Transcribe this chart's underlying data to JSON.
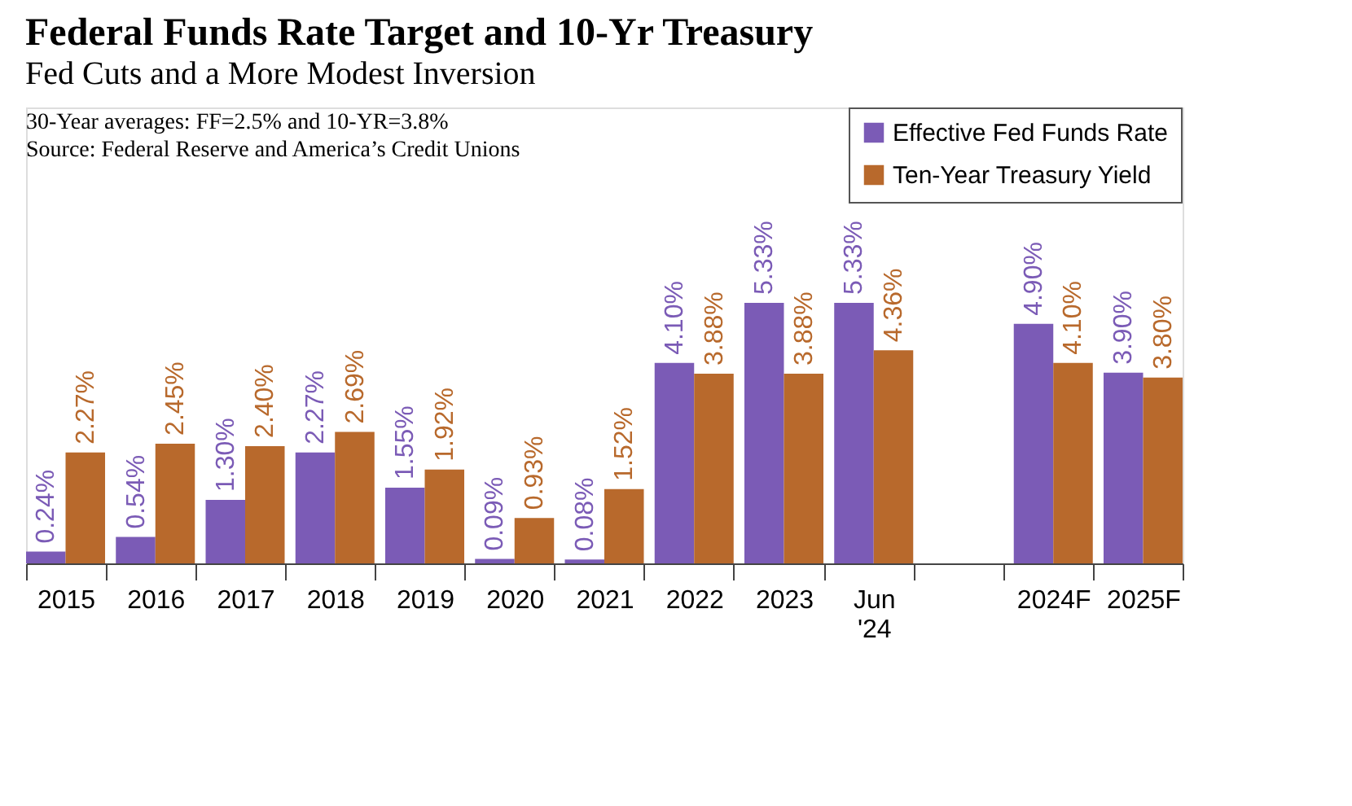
{
  "chart_data": {
    "type": "bar",
    "title": "Federal Funds Rate Target and 10-Yr Treasury",
    "subtitle": "Fed Cuts and a More Modest Inversion",
    "annotations": [
      "30-Year averages: FF=2.5% and 10-YR=3.8%",
      "Source: Federal Reserve and America’s Credit Unions"
    ],
    "categories": [
      "2015",
      "2016",
      "2017",
      "2018",
      "2019",
      "2020",
      "2021",
      "2022",
      "2023",
      "Jun\n'24",
      null,
      "2024F",
      "2025F"
    ],
    "series": [
      {
        "name": "Effective Fed Funds Rate",
        "color": "#7b5bb6",
        "values": [
          0.24,
          0.54,
          1.3,
          2.27,
          1.55,
          0.09,
          0.08,
          4.1,
          5.33,
          5.33,
          null,
          4.9,
          3.9
        ],
        "value_labels": [
          "0.24%",
          "0.54%",
          "1.30%",
          "2.27%",
          "1.55%",
          "0.09%",
          "0.08%",
          "4.10%",
          "5.33%",
          "5.33%",
          null,
          "4.90%",
          "3.90%"
        ]
      },
      {
        "name": "Ten-Year Treasury Yield",
        "color": "#b8692c",
        "values": [
          2.27,
          2.45,
          2.4,
          2.69,
          1.92,
          0.93,
          1.52,
          3.88,
          3.88,
          4.36,
          null,
          4.1,
          3.8
        ],
        "value_labels": [
          "2.27%",
          "2.45%",
          "2.40%",
          "2.69%",
          "1.92%",
          "0.93%",
          "1.52%",
          "3.88%",
          "3.88%",
          "4.36%",
          null,
          "4.10%",
          "3.80%"
        ]
      }
    ],
    "legend": "top right",
    "grid": false
  }
}
